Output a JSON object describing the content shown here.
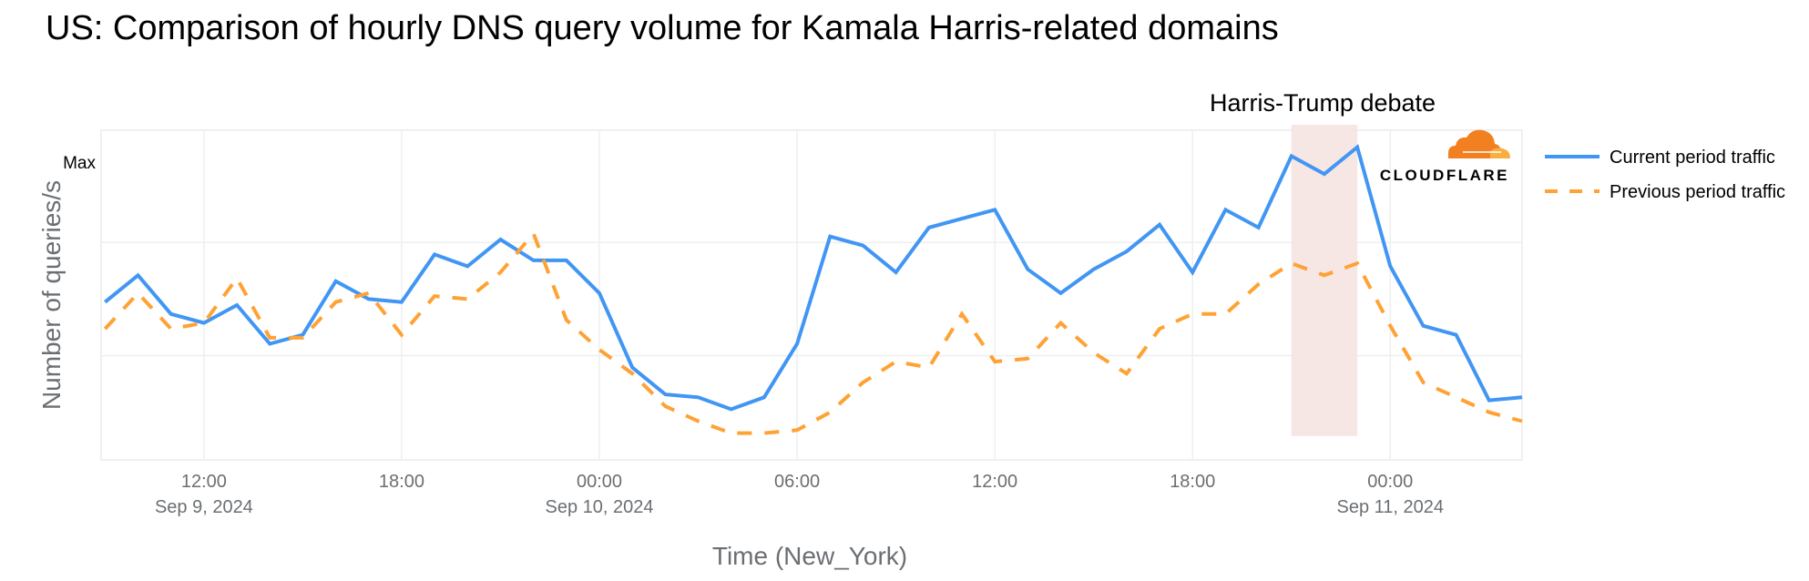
{
  "title": "US: Comparison of hourly DNS query volume for Kamala Harris-related domains",
  "logo": {
    "text": "CLOUDFLARE",
    "colors": [
      "#f38020",
      "#faae40"
    ]
  },
  "chart_data": {
    "type": "line",
    "title": "US: Comparison of hourly DNS query volume for Kamala Harris-related domains",
    "xlabel": "Time (New_York)",
    "ylabel": "Number of queries/s",
    "x_start": "Sep 9, 2024 09:00",
    "x_step_hours": 1,
    "xlim": [
      -0.12,
      43
    ],
    "ylim": [
      0,
      110.7
    ],
    "y_ticks": [
      {
        "value": 100,
        "label": "Max"
      }
    ],
    "y_grid": [
      35,
      73,
      110.7
    ],
    "x_ticks": [
      {
        "hour": 3,
        "label": "12:00",
        "date": "Sep 9, 2024"
      },
      {
        "hour": 9,
        "label": "18:00",
        "date": ""
      },
      {
        "hour": 15,
        "label": "00:00",
        "date": "Sep 10, 2024"
      },
      {
        "hour": 21,
        "label": "06:00",
        "date": ""
      },
      {
        "hour": 27,
        "label": "12:00",
        "date": ""
      },
      {
        "hour": 33,
        "label": "18:00",
        "date": ""
      },
      {
        "hour": 39,
        "label": "00:00",
        "date": "Sep 11, 2024"
      }
    ],
    "series": [
      {
        "name": "Current period traffic",
        "color": "#4196f4",
        "dash": false,
        "values": [
          53,
          62,
          49,
          46,
          52,
          39,
          42,
          60,
          54,
          53,
          69,
          65,
          74,
          67,
          67,
          56,
          31,
          22,
          21,
          17,
          21,
          39,
          75,
          72,
          63,
          78,
          81,
          84,
          64,
          56,
          64,
          70,
          79,
          63,
          84,
          78,
          102,
          96,
          105,
          65,
          45,
          42,
          20,
          21
        ]
      },
      {
        "name": "Previous period traffic",
        "color": "#ffa235",
        "dash": true,
        "values": [
          44,
          56,
          44,
          46,
          61,
          41,
          41,
          53,
          56,
          42,
          55,
          54,
          63,
          76,
          47,
          37,
          29,
          18,
          13,
          9,
          9,
          10,
          16,
          26,
          33,
          31,
          49,
          33,
          34,
          46,
          36,
          29,
          44,
          49,
          49,
          59,
          66,
          62,
          66,
          45,
          26,
          21,
          16,
          13
        ]
      }
    ],
    "annotations": [
      {
        "label": "Harris-Trump debate",
        "x_start_hour": 36,
        "x_end_hour": 38,
        "y_bottom": 8,
        "color": "#f5e4e2"
      }
    ],
    "legend_position": "right",
    "grid": true
  }
}
